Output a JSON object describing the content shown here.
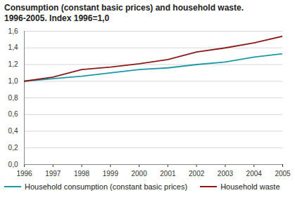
{
  "chart_data": {
    "type": "line",
    "title": "Consumption (constant basic prices) and household waste.\n1996-2005. Index 1996=1,0",
    "x": [
      1996,
      1997,
      1998,
      1999,
      2000,
      2001,
      2002,
      2003,
      2004,
      2005
    ],
    "series": [
      {
        "name": "Household consumption (constant basic prices)",
        "color": "#1a9aa6",
        "values": [
          1.0,
          1.03,
          1.06,
          1.1,
          1.14,
          1.16,
          1.2,
          1.23,
          1.29,
          1.33
        ]
      },
      {
        "name": "Household waste",
        "color": "#8c1a1a",
        "values": [
          1.0,
          1.05,
          1.14,
          1.17,
          1.21,
          1.26,
          1.35,
          1.4,
          1.46,
          1.54
        ]
      }
    ],
    "xlim": [
      1996,
      2005
    ],
    "xticks": [
      1996,
      1997,
      1998,
      1999,
      2000,
      2001,
      2002,
      2003,
      2004,
      2005
    ],
    "ylim": [
      0,
      1.6
    ],
    "yticks": [
      {
        "value": 0,
        "label": "0,0"
      },
      {
        "value": 0.2,
        "label": "0,2"
      },
      {
        "value": 0.4,
        "label": "0,4"
      },
      {
        "value": 0.6,
        "label": "0,6"
      },
      {
        "value": 0.8,
        "label": "0,8"
      },
      {
        "value": 1.0,
        "label": "1,0"
      },
      {
        "value": 1.2,
        "label": "1,2"
      },
      {
        "value": 1.4,
        "label": "1,4"
      },
      {
        "value": 1.6,
        "label": "1,6"
      }
    ],
    "grid": true,
    "legend": "bottom"
  }
}
